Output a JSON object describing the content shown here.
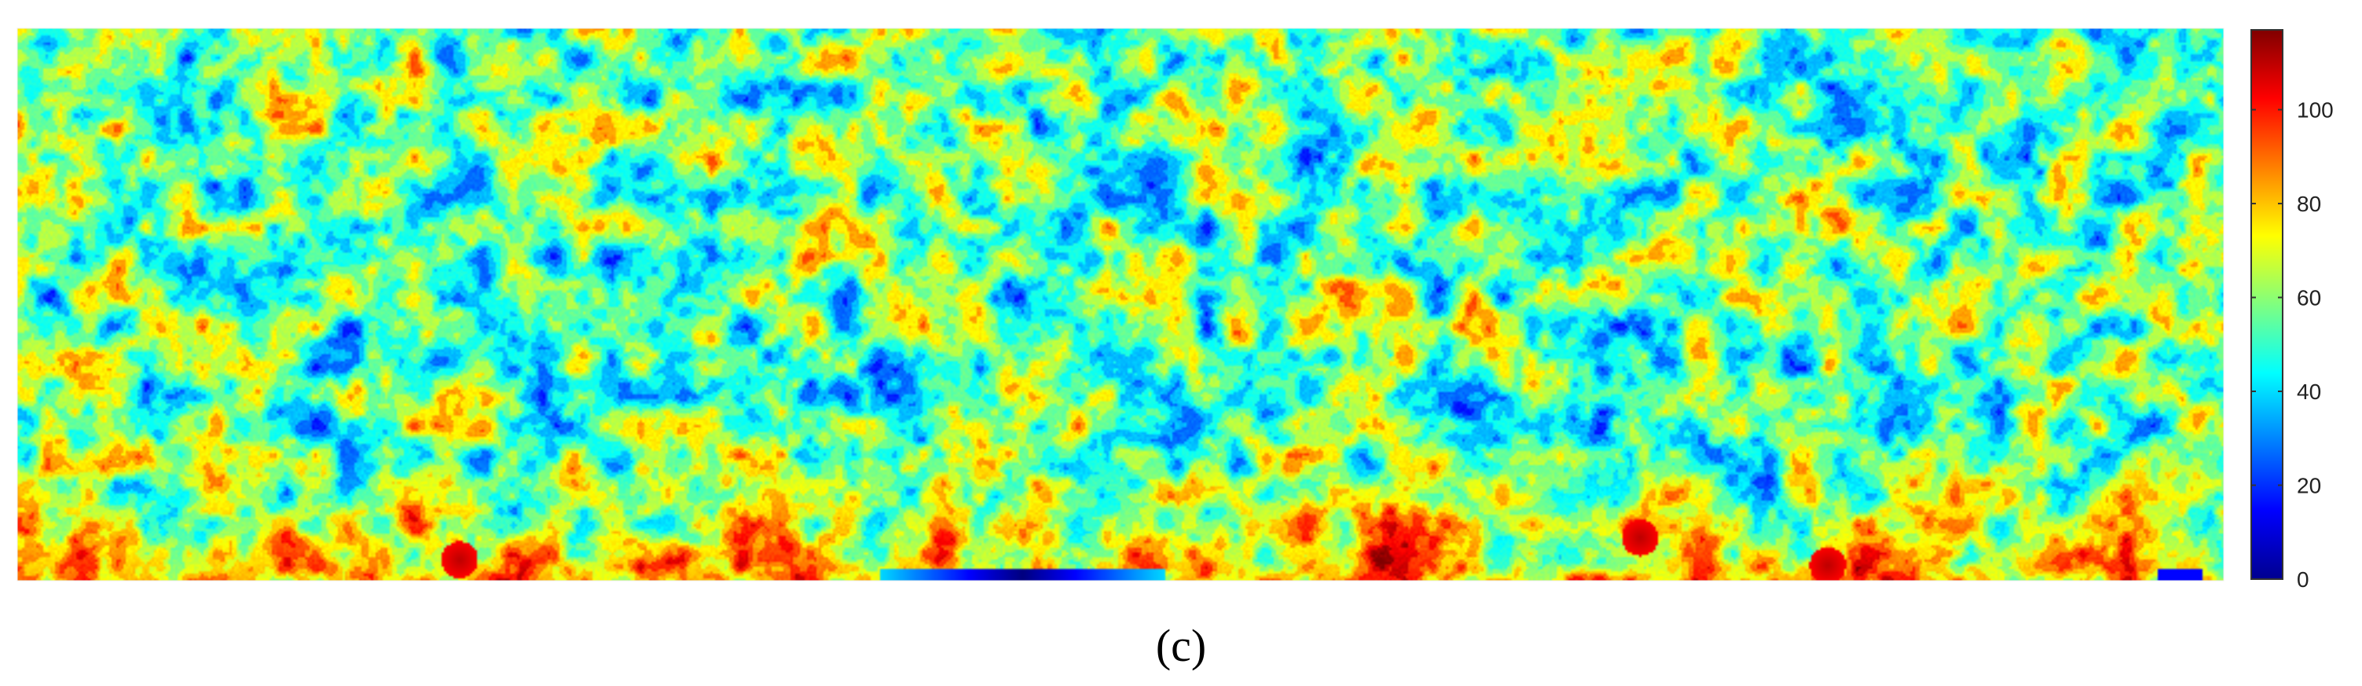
{
  "chart_data": {
    "type": "heatmap",
    "title": "",
    "xlabel": "",
    "ylabel": "",
    "colormap": "jet",
    "color_range": [
      0,
      117
    ],
    "colorbar": {
      "ticks": [
        0,
        20,
        40,
        60,
        80,
        100
      ],
      "tick_labels": [
        "0",
        "20",
        "40",
        "60",
        "80",
        "100"
      ],
      "placement": "right"
    },
    "grid": false,
    "description_free_values": {
      "bottom_band_high_values": [
        95,
        110
      ],
      "bottom_center_low_values": [
        0,
        10
      ],
      "background_range": [
        10,
        85
      ]
    },
    "panel_label": "(c)"
  }
}
